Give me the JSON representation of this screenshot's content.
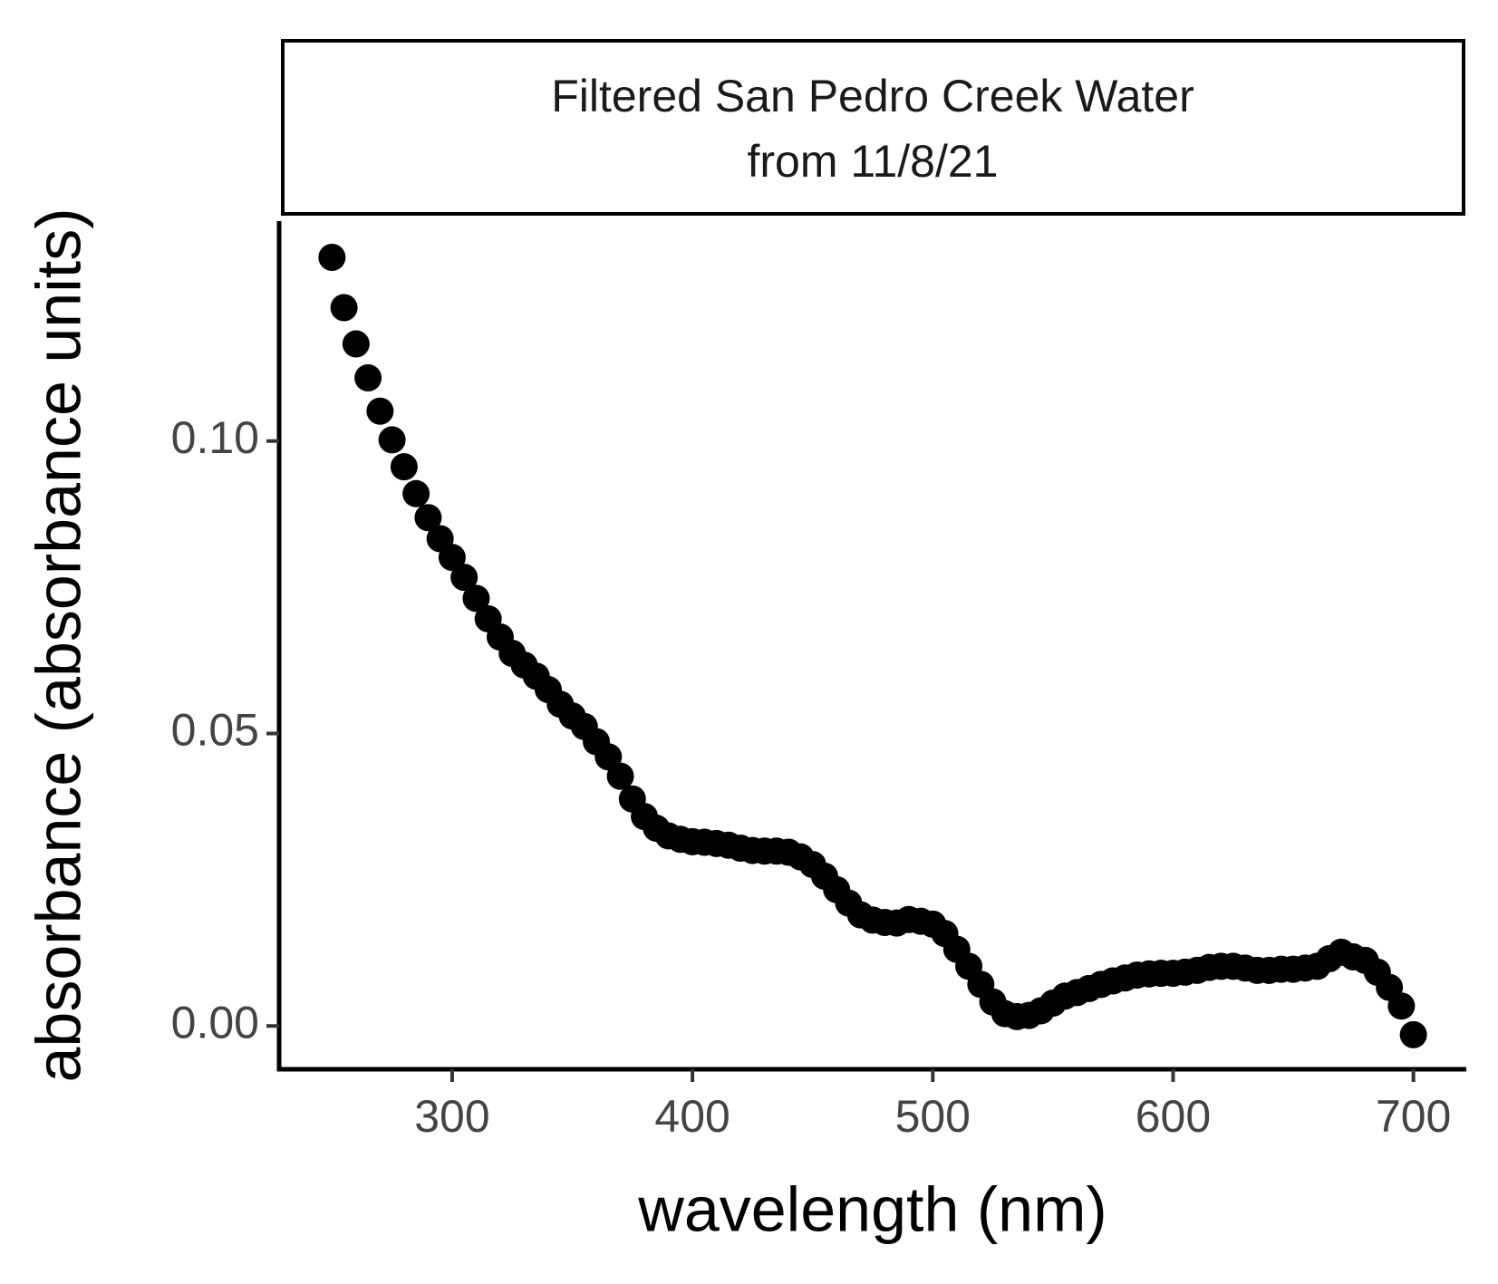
{
  "chart_data": {
    "type": "scatter",
    "title": [
      "Filtered San Pedro Creek Water",
      "from 11/8/21"
    ],
    "x_label": "wavelength (nm)",
    "y_label": "absorbance (absorbance units)",
    "color": "#000000",
    "x": [
      250,
      255,
      260,
      265,
      270,
      275,
      280,
      285,
      290,
      295,
      300,
      305,
      310,
      315,
      320,
      325,
      330,
      335,
      340,
      345,
      350,
      355,
      360,
      365,
      370,
      375,
      380,
      385,
      390,
      395,
      400,
      405,
      410,
      415,
      420,
      425,
      430,
      435,
      440,
      445,
      450,
      455,
      460,
      465,
      470,
      475,
      480,
      485,
      490,
      495,
      500,
      505,
      510,
      515,
      520,
      525,
      530,
      535,
      540,
      545,
      550,
      555,
      560,
      565,
      570,
      575,
      580,
      585,
      590,
      595,
      600,
      605,
      610,
      615,
      620,
      625,
      630,
      635,
      640,
      645,
      650,
      655,
      660,
      665,
      670,
      675,
      680,
      685,
      690,
      695,
      700
    ],
    "values": [
      0.1314,
      0.1228,
      0.1166,
      0.1108,
      0.1051,
      0.1002,
      0.0956,
      0.091,
      0.0869,
      0.0833,
      0.0801,
      0.0767,
      0.0731,
      0.0696,
      0.0665,
      0.0637,
      0.0617,
      0.0598,
      0.0575,
      0.055,
      0.053,
      0.0512,
      0.0486,
      0.046,
      0.0427,
      0.0388,
      0.0358,
      0.0338,
      0.0325,
      0.0319,
      0.0315,
      0.0314,
      0.0312,
      0.0309,
      0.0304,
      0.03,
      0.0299,
      0.0299,
      0.0297,
      0.0289,
      0.0276,
      0.0256,
      0.0233,
      0.021,
      0.019,
      0.0181,
      0.0177,
      0.0176,
      0.0182,
      0.0179,
      0.0174,
      0.0158,
      0.0131,
      0.0102,
      0.0071,
      0.0041,
      0.0021,
      0.0016,
      0.0018,
      0.0026,
      0.0039,
      0.0051,
      0.0057,
      0.0064,
      0.0071,
      0.0077,
      0.0082,
      0.0087,
      0.0089,
      0.009,
      0.009,
      0.0092,
      0.0095,
      0.01,
      0.0102,
      0.0102,
      0.0099,
      0.0095,
      0.0095,
      0.0097,
      0.0097,
      0.0099,
      0.0102,
      0.0115,
      0.0126,
      0.0118,
      0.0112,
      0.0092,
      0.0066,
      0.0034,
      -0.0015
    ],
    "xlim": [
      228,
      722
    ],
    "ylim": [
      -0.0074,
      0.1376
    ],
    "xticks": [
      300,
      400,
      500,
      600,
      700
    ],
    "yticks": [
      {
        "value": 0,
        "label": "0.00"
      },
      {
        "value": 0.05,
        "label": "0.05"
      },
      {
        "value": 0.1,
        "label": "0.10"
      }
    ]
  }
}
